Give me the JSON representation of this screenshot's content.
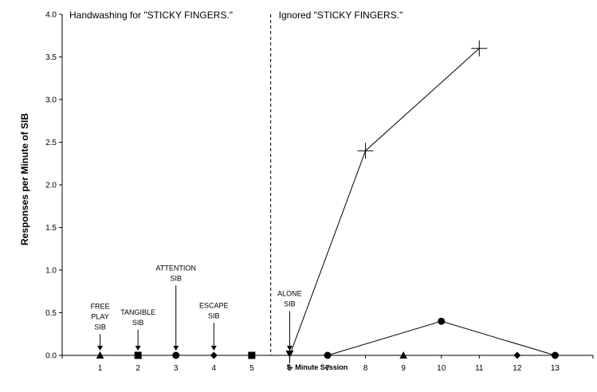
{
  "chart_data": {
    "type": "scatter",
    "title": "",
    "xlabel": "5- Minute Session",
    "ylabel": "Responses per Minute of SIB",
    "xlim": [
      0,
      14
    ],
    "ylim": [
      0,
      4.0
    ],
    "x_ticks": [
      1,
      2,
      3,
      4,
      5,
      6,
      7,
      8,
      9,
      10,
      11,
      12,
      13
    ],
    "y_ticks": [
      "0.0",
      "0.5",
      "1.0",
      "1.5",
      "2.0",
      "2.5",
      "3.0",
      "3.5",
      "4.0"
    ],
    "grid": false,
    "legend": "none",
    "phase_line_x": 5.5,
    "phases": [
      {
        "label": "Handwashing for  \"STICKY FINGERS.\""
      },
      {
        "label": "Ignored \"STICKY FINGERS.\""
      }
    ],
    "series": [
      {
        "marker": "triangle",
        "points": [
          {
            "x": 1,
            "y": 0
          },
          {
            "x": 9,
            "y": 0
          }
        ],
        "connect": false
      },
      {
        "marker": "square",
        "points": [
          {
            "x": 2,
            "y": 0
          },
          {
            "x": 5,
            "y": 0
          }
        ],
        "connect": false
      },
      {
        "marker": "circle",
        "points": [
          {
            "x": 3,
            "y": 0
          }
        ],
        "connect": false
      },
      {
        "marker": "diamond",
        "points": [
          {
            "x": 4,
            "y": 0
          },
          {
            "x": 12,
            "y": 0
          }
        ],
        "connect": false
      },
      {
        "marker": "triangle-down",
        "points": [
          {
            "x": 6,
            "y": 0
          }
        ],
        "connect": false
      },
      {
        "marker": "plus",
        "points": [
          {
            "x": 6,
            "y": 0
          },
          {
            "x": 8,
            "y": 2.4
          },
          {
            "x": 11,
            "y": 3.6
          }
        ],
        "connect": true
      },
      {
        "marker": "circle",
        "points": [
          {
            "x": 7,
            "y": 0
          },
          {
            "x": 10,
            "y": 0.4
          },
          {
            "x": 13,
            "y": 0
          }
        ],
        "connect": true
      }
    ],
    "annotations": [
      {
        "lines": [
          "FREE",
          "PLAY",
          "SIB"
        ],
        "x": 1,
        "arrow_from_y": 0.25
      },
      {
        "lines": [
          "TANGIBLE",
          "SIB"
        ],
        "x": 2,
        "arrow_from_y": 0.3
      },
      {
        "lines": [
          "ATTENTION",
          "SIB"
        ],
        "x": 3,
        "arrow_from_y": 0.82
      },
      {
        "lines": [
          "ESCAPE",
          "SIB"
        ],
        "x": 4,
        "arrow_from_y": 0.38
      },
      {
        "lines": [
          "ALONE",
          "SIB"
        ],
        "x": 6,
        "arrow_from_y": 0.52
      }
    ]
  }
}
